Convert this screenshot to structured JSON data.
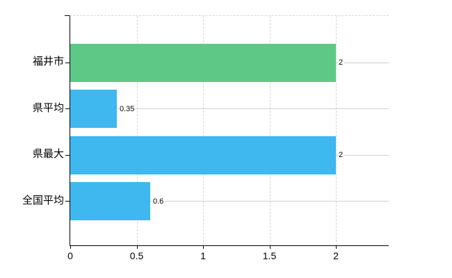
{
  "chart_data": {
    "type": "bar",
    "orientation": "horizontal",
    "title": "",
    "xlabel": "",
    "ylabel": "",
    "categories": [
      "福井市",
      "県平均",
      "県最大",
      "全国平均"
    ],
    "values": [
      2,
      0.35,
      2,
      0.6
    ],
    "value_labels": [
      "2",
      "0.35",
      "2",
      "0.6"
    ],
    "bar_colors": [
      "#5ec987",
      "#3eb8ef",
      "#3eb8ef",
      "#3eb8ef"
    ],
    "x_tick_labels": [
      "0",
      "0.5",
      "1",
      "1.5",
      "2"
    ],
    "x_tick_values": [
      0,
      0.5,
      1,
      1.5,
      2
    ],
    "xlim": [
      0,
      2.4
    ],
    "grid": "vertical-dashed",
    "legend": "none"
  },
  "style": {
    "highlight_bar_color": "#5ec987",
    "default_bar_color": "#3eb8ef",
    "gridline_color": "#d4d4d4",
    "leader_line_color": "#cfcfca",
    "axis_color": "#000000",
    "background_color": "#ffffff"
  }
}
